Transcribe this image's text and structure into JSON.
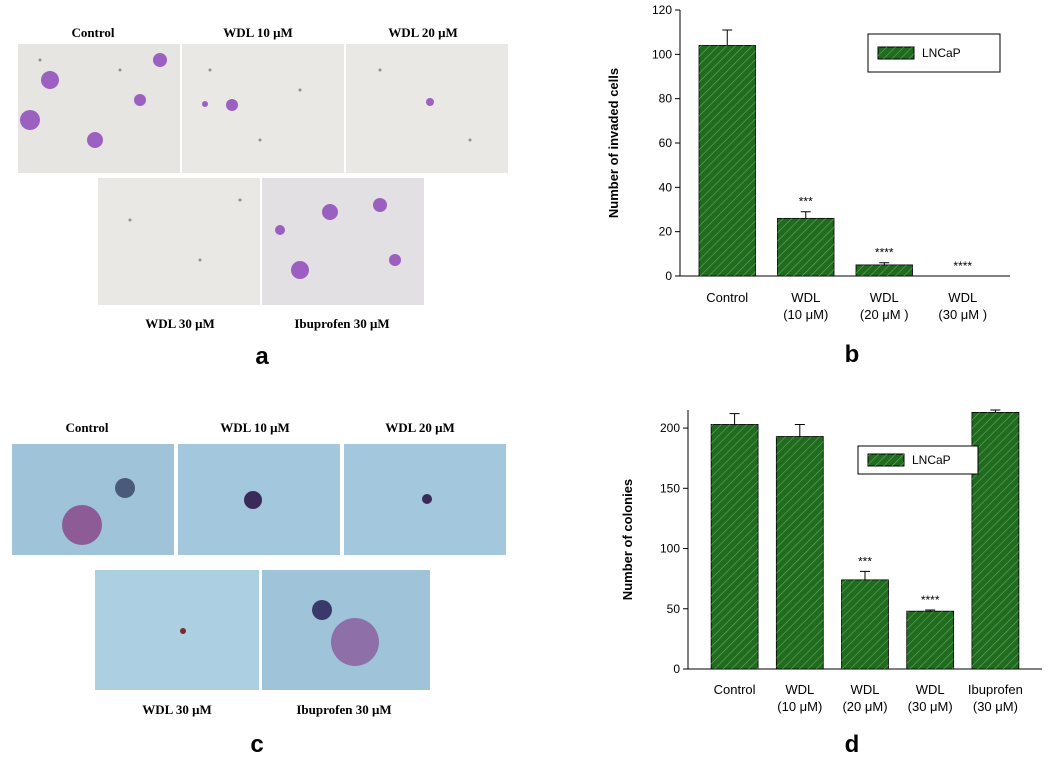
{
  "panel_a": {
    "letter": "a",
    "labels": [
      "Control",
      "WDL 10 μM",
      "WDL 20 μM",
      "WDL 30 μM",
      "Ibuprofen 30 μM"
    ]
  },
  "panel_c": {
    "letter": "c",
    "labels": [
      "Control",
      "WDL 10 μM",
      "WDL 20 μM",
      "WDL 30 μM",
      "Ibuprofen 30 μM"
    ]
  },
  "chart_data": [
    {
      "type": "bar",
      "letter": "b",
      "ylabel": "Number of invaded cells",
      "categories": [
        "Control",
        "WDL\n(10 μM)",
        "WDL\n(20 μM )",
        "WDL\n(30 μM )"
      ],
      "series": [
        {
          "name": "LNCaP",
          "color": "#1f6b1f",
          "values": [
            104,
            26,
            5,
            0
          ],
          "errors": [
            7,
            3,
            1,
            0
          ]
        }
      ],
      "significance": [
        null,
        "***",
        "****",
        "****"
      ],
      "ylim": [
        0,
        120
      ],
      "yticks": [
        0,
        20,
        40,
        60,
        80,
        100,
        120
      ]
    },
    {
      "type": "bar",
      "letter": "d",
      "ylabel": "Number of colonies",
      "categories": [
        "Control",
        "WDL\n(10 μM)",
        "WDL\n(20 μM)",
        "WDL\n(30 μM)",
        "Ibuprofen\n(30 μM)"
      ],
      "series": [
        {
          "name": "LNCaP",
          "color": "#1f6b1f",
          "values": [
            203,
            193,
            74,
            48,
            213
          ],
          "errors": [
            9,
            10,
            7,
            1,
            2
          ]
        }
      ],
      "significance": [
        null,
        null,
        "***",
        "****",
        null
      ],
      "ylim": [
        0,
        215
      ],
      "yticks": [
        0,
        50,
        100,
        150,
        200
      ]
    }
  ]
}
